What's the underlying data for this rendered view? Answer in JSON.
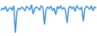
{
  "chart_data": {
    "type": "line",
    "color": "#3a8fd8",
    "tick_labels": false,
    "grid": false,
    "ylim": [
      0,
      100
    ],
    "values": [
      72,
      80,
      76,
      85,
      70,
      78,
      82,
      74,
      88,
      5,
      70,
      80,
      76,
      84,
      78,
      72,
      86,
      80,
      75,
      90,
      62,
      78,
      84,
      80,
      74,
      88,
      82,
      30,
      76,
      84,
      78,
      86,
      72,
      80,
      60,
      85,
      78,
      88,
      76,
      82,
      74,
      35,
      80,
      86,
      78,
      84,
      70,
      88,
      80,
      76,
      84,
      40,
      78,
      86,
      82,
      76,
      88,
      72,
      84,
      80
    ]
  }
}
